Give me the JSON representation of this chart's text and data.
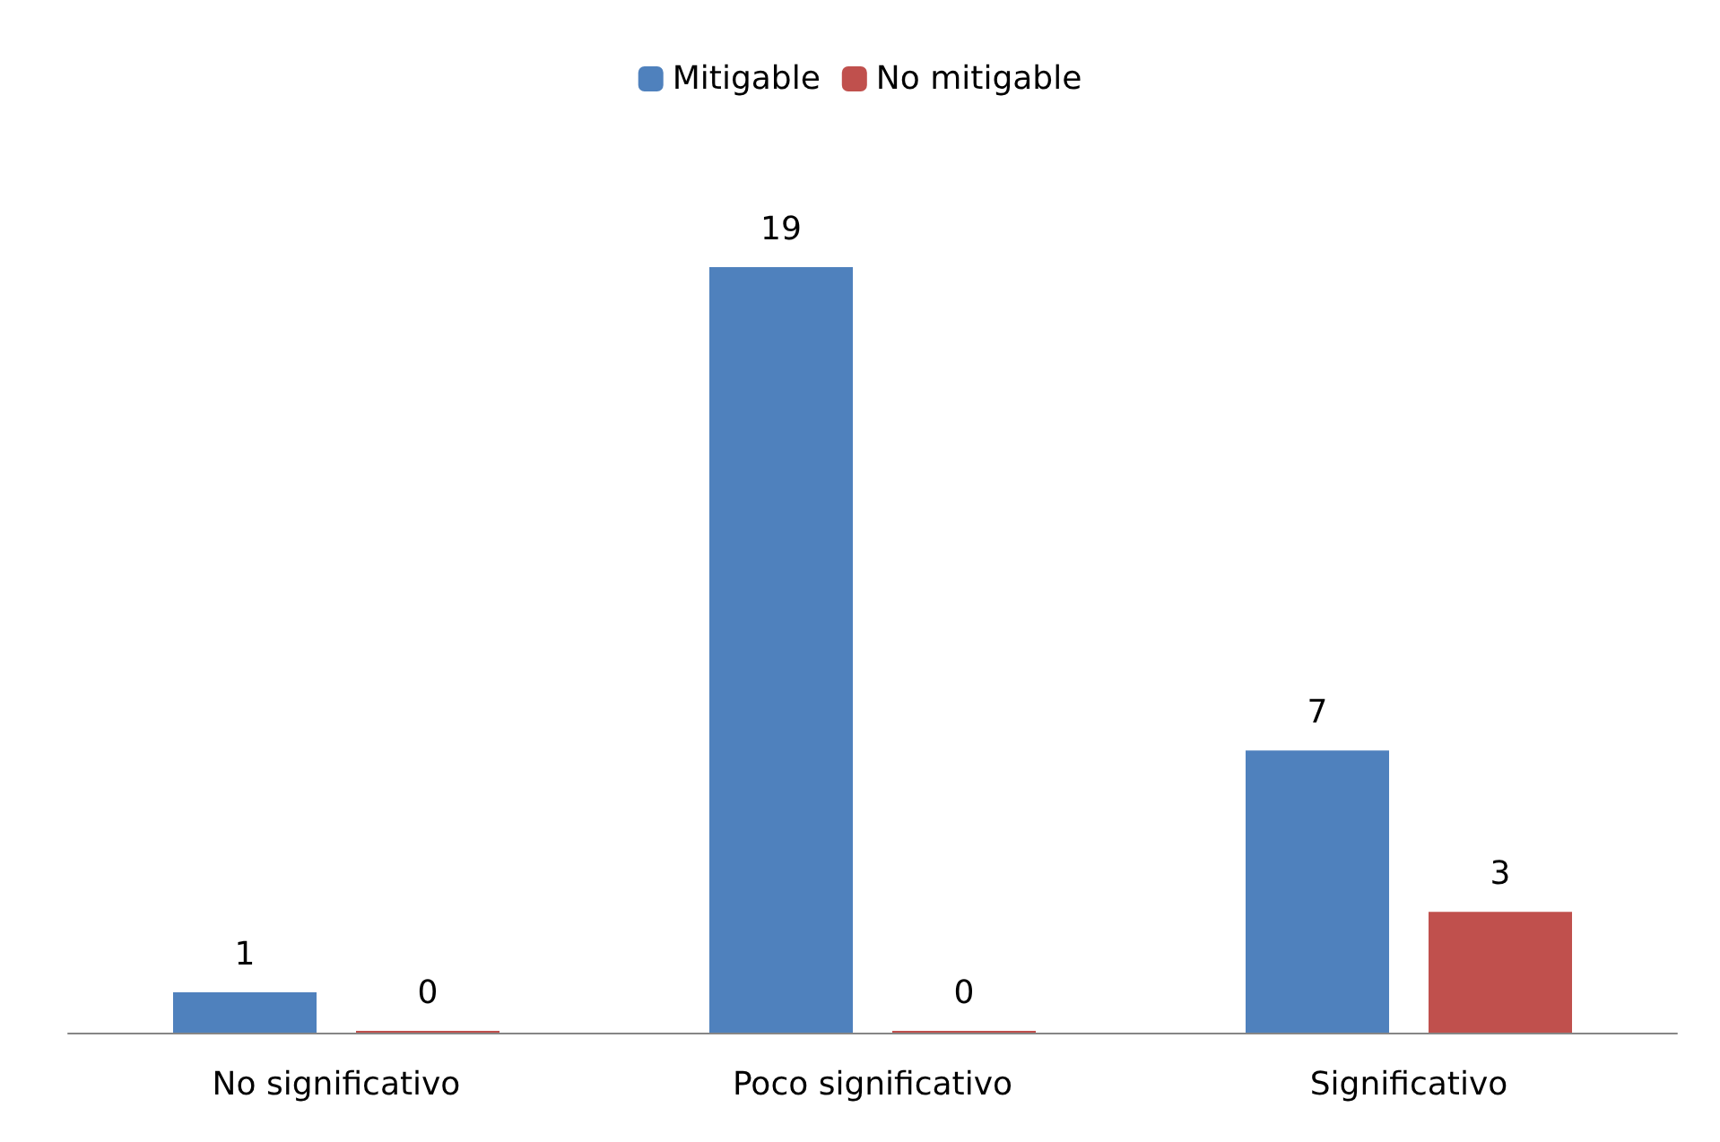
{
  "chart_data": {
    "type": "bar",
    "categories": [
      "No significativo",
      "Poco significativo",
      "Significativo"
    ],
    "series": [
      {
        "name": "Mitigable",
        "color": "#4f81bd",
        "values": [
          1,
          19,
          7
        ]
      },
      {
        "name": "No mitigable",
        "color": "#c0504d",
        "values": [
          0,
          0,
          3
        ]
      }
    ],
    "data_labels": true,
    "legend": "top",
    "grid": false
  }
}
